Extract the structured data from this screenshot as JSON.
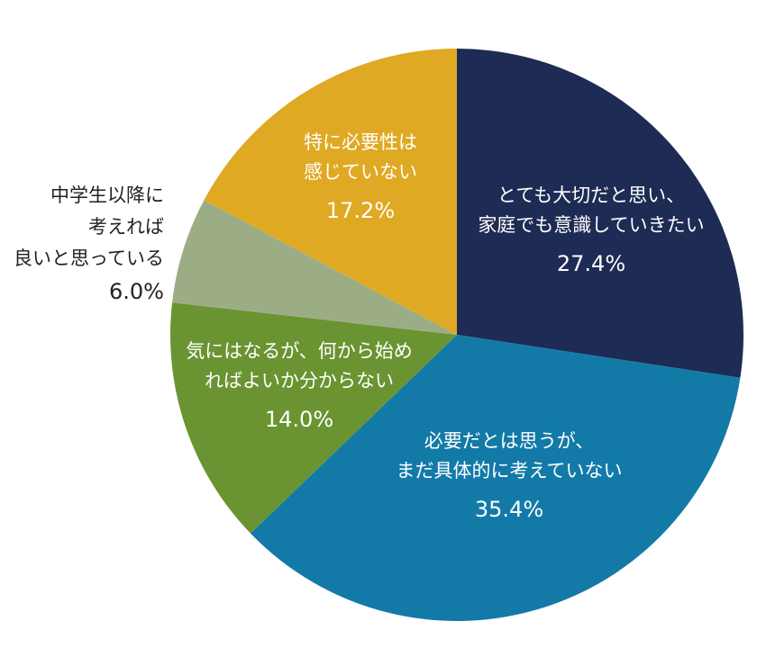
{
  "chart_data": {
    "type": "pie",
    "start_angle_deg": 0,
    "direction": "clockwise",
    "slices": [
      {
        "label_lines": [
          "とても大切だと思い、",
          "家庭でも意識していきたい"
        ],
        "value": 27.4,
        "value_label": "27.4%",
        "color": "#1e2b54",
        "text_color": "#ffffff"
      },
      {
        "label_lines": [
          "必要だとは思うが、",
          "まだ具体的に考えていない"
        ],
        "value": 35.4,
        "value_label": "35.4%",
        "color": "#137aa8",
        "text_color": "#ffffff"
      },
      {
        "label_lines": [
          "気にはなるが、何から始め",
          "ればよいか分からない"
        ],
        "value": 14.0,
        "value_label": "14.0%",
        "color": "#6a9431",
        "text_color": "#ffffff"
      },
      {
        "label_lines": [
          "中学生以降に",
          "考えれば",
          "良いと思っている"
        ],
        "value": 6.0,
        "value_label": "6.0%",
        "color": "#9cad86",
        "text_color": "#222222"
      },
      {
        "label_lines": [
          "特に必要性は",
          "感じていない"
        ],
        "value": 17.2,
        "value_label": "17.2%",
        "color": "#e0a923",
        "text_color": "#ffffff"
      }
    ]
  }
}
